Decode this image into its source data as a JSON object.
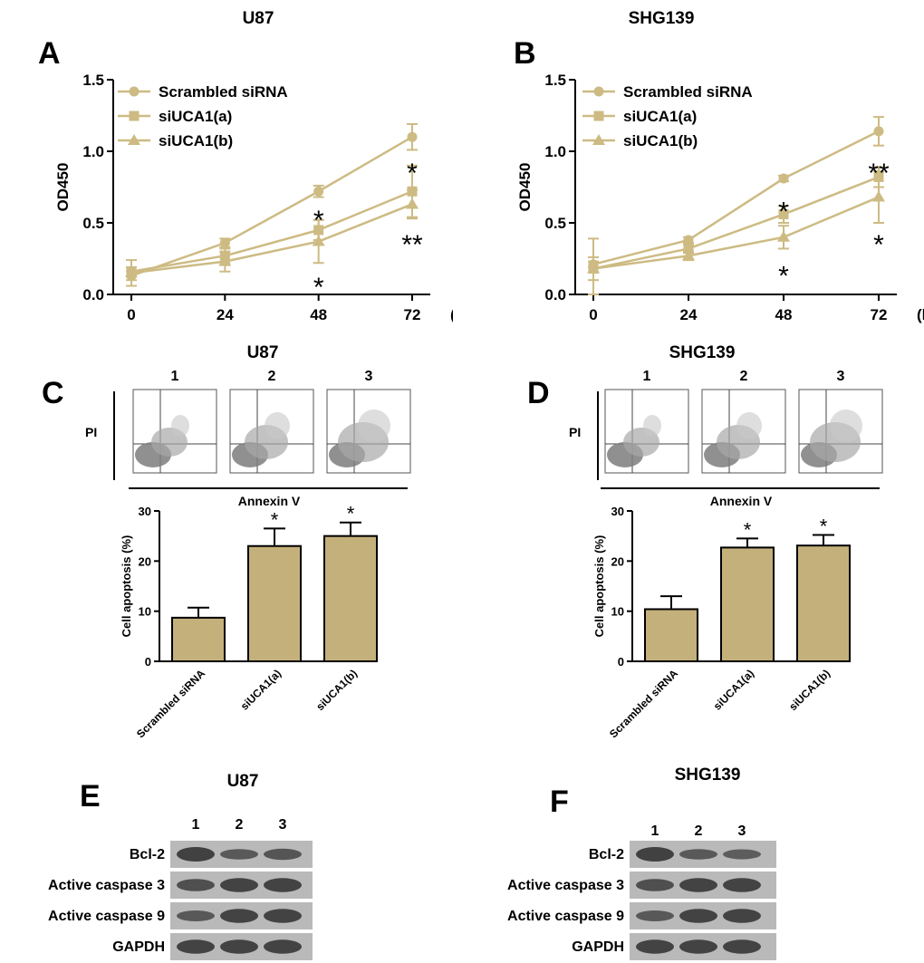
{
  "colors": {
    "series": "#cdbb83",
    "bar_fill": "#c4b07a",
    "axis": "#000000",
    "blot_band": "#3a3a3a",
    "blot_bg": "#b9b9b9"
  },
  "chart_data": [
    {
      "panel": "A",
      "type": "line",
      "title": "U87",
      "x": [
        0,
        24,
        48,
        72
      ],
      "xunit": "(h)",
      "ylabel": "OD450",
      "ylim": [
        0,
        1.5
      ],
      "yticks": [
        0.0,
        0.5,
        1.0,
        1.5
      ],
      "series": [
        {
          "name": "Scrambled siRNA",
          "marker": "circle",
          "values": [
            0.13,
            0.36,
            0.72,
            1.1
          ],
          "err": [
            0.03,
            0.03,
            0.04,
            0.09
          ]
        },
        {
          "name": "siUCA1(a)",
          "marker": "square",
          "values": [
            0.16,
            0.27,
            0.45,
            0.72
          ],
          "err": [
            0.03,
            0.05,
            0.07,
            0.18
          ]
        },
        {
          "name": "siUCA1(b)",
          "marker": "triangle",
          "values": [
            0.15,
            0.23,
            0.37,
            0.63
          ],
          "err": [
            0.09,
            0.07,
            0.15,
            0.1
          ]
        }
      ],
      "annotations": [
        {
          "x": 48,
          "y": 0.57,
          "text": "*"
        },
        {
          "x": 48,
          "y": 0.1,
          "text": "*"
        },
        {
          "x": 72,
          "y": 0.9,
          "text": "*"
        },
        {
          "x": 72,
          "y": 0.4,
          "text": "**"
        }
      ]
    },
    {
      "panel": "B",
      "type": "line",
      "title": "SHG139",
      "x": [
        0,
        24,
        48,
        72
      ],
      "xunit": "(h)",
      "ylabel": "OD450",
      "ylim": [
        0,
        1.5
      ],
      "yticks": [
        0.0,
        0.5,
        1.0,
        1.5
      ],
      "series": [
        {
          "name": "Scrambled siRNA",
          "marker": "circle",
          "values": [
            0.21,
            0.38,
            0.81,
            1.14
          ],
          "err": [
            0.02,
            0.02,
            0.02,
            0.1
          ]
        },
        {
          "name": "siUCA1(a)",
          "marker": "square",
          "values": [
            0.18,
            0.32,
            0.56,
            0.82
          ],
          "err": [
            0.08,
            0.03,
            0.06,
            0.07
          ]
        },
        {
          "name": "siUCA1(b)",
          "marker": "triangle",
          "values": [
            0.18,
            0.27,
            0.4,
            0.68
          ],
          "err": [
            0.21,
            0.03,
            0.08,
            0.18
          ]
        }
      ],
      "annotations": [
        {
          "x": 48,
          "y": 0.63,
          "text": "*"
        },
        {
          "x": 48,
          "y": 0.18,
          "text": "*"
        },
        {
          "x": 72,
          "y": 0.9,
          "text": "**"
        },
        {
          "x": 72,
          "y": 0.4,
          "text": "*"
        }
      ]
    },
    {
      "panel": "C",
      "type": "bar",
      "title": "U87",
      "categories": [
        "Scrambled siRNA",
        "siUCA1(a)",
        "siUCA1(b)"
      ],
      "values": [
        8.7,
        23.0,
        25.0
      ],
      "err": [
        2.0,
        3.5,
        2.7
      ],
      "sig": [
        "",
        "*",
        "*"
      ],
      "ylabel": "Cell apoptosis (%)",
      "ylim": [
        0,
        30
      ],
      "yticks": [
        0,
        10,
        20,
        30
      ]
    },
    {
      "panel": "D",
      "type": "bar",
      "title": "SHG139",
      "categories": [
        "Scrambled siRNA",
        "siUCA1(a)",
        "siUCA1(b)"
      ],
      "values": [
        10.4,
        22.7,
        23.1
      ],
      "err": [
        2.6,
        1.8,
        2.1
      ],
      "sig": [
        "",
        "*",
        "*"
      ],
      "ylabel": "Cell apoptosis (%)",
      "ylim": [
        0,
        30
      ],
      "yticks": [
        0,
        10,
        20,
        30
      ]
    }
  ],
  "flow": {
    "C": {
      "title": "U87",
      "lanes": [
        "1",
        "2",
        "3"
      ],
      "y_label": "PI",
      "x_label": "Annexin V"
    },
    "D": {
      "title": "SHG139",
      "lanes": [
        "1",
        "2",
        "3"
      ],
      "y_label": "PI",
      "x_label": "Annexin V"
    }
  },
  "blots": {
    "E": {
      "title": "U87",
      "lanes": [
        "1",
        "2",
        "3"
      ],
      "rows": [
        {
          "label": "Bcl-2",
          "intensity": [
            1.0,
            0.55,
            0.65
          ]
        },
        {
          "label": "Active caspase 3",
          "intensity": [
            0.75,
            0.95,
            0.95
          ]
        },
        {
          "label": "Active caspase 9",
          "intensity": [
            0.6,
            0.95,
            0.95
          ]
        },
        {
          "label": "GAPDH",
          "intensity": [
            0.95,
            0.95,
            0.95
          ]
        }
      ]
    },
    "F": {
      "title": "SHG139",
      "lanes": [
        "1",
        "2",
        "3"
      ],
      "rows": [
        {
          "label": "Bcl-2",
          "intensity": [
            1.0,
            0.55,
            0.5
          ]
        },
        {
          "label": "Active caspase 3",
          "intensity": [
            0.75,
            0.95,
            0.95
          ]
        },
        {
          "label": "Active caspase 9",
          "intensity": [
            0.6,
            0.95,
            0.95
          ]
        },
        {
          "label": "GAPDH",
          "intensity": [
            0.95,
            0.95,
            0.95
          ]
        }
      ]
    }
  },
  "panel_letters": {
    "A": "A",
    "B": "B",
    "C": "C",
    "D": "D",
    "E": "E",
    "F": "F"
  }
}
